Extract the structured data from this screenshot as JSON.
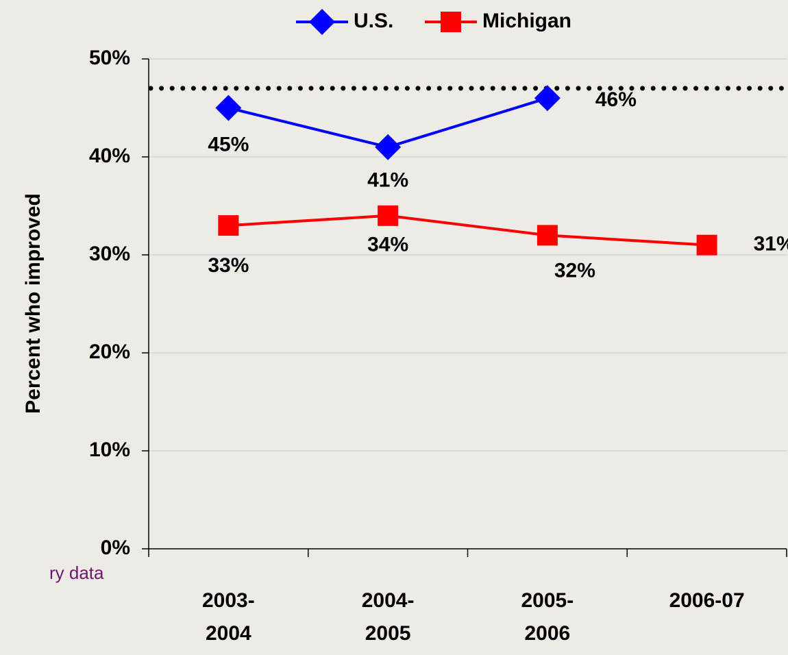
{
  "chart_data": {
    "type": "line",
    "y_axis_label": "Percent who improved",
    "categories": [
      "2003-\n2004",
      "2004-\n2005",
      "2005-\n2006",
      "2006-07"
    ],
    "series": [
      {
        "name": "U.S.",
        "color": "#0000ff",
        "marker": "diamond",
        "values": [
          45,
          41,
          46,
          null
        ],
        "value_labels": [
          "45%",
          "41%",
          "46%",
          null
        ]
      },
      {
        "name": "Michigan",
        "color": "#ff0000",
        "marker": "square",
        "values": [
          33,
          34,
          32,
          31
        ],
        "value_labels": [
          "33%",
          "34%",
          "32%",
          "31%"
        ]
      }
    ],
    "reference_lines": [
      {
        "value": 47,
        "color": "#000000",
        "style": "dotted"
      }
    ],
    "ylim": [
      0,
      50
    ],
    "yticks": [
      {
        "value": 0,
        "label": "0%"
      },
      {
        "value": 10,
        "label": "10%"
      },
      {
        "value": 20,
        "label": "20%"
      },
      {
        "value": 30,
        "label": "30%"
      },
      {
        "value": 40,
        "label": "40%"
      },
      {
        "value": 50,
        "label": "50%"
      }
    ],
    "grid": true,
    "legend": "top",
    "source_note": "ry data"
  }
}
